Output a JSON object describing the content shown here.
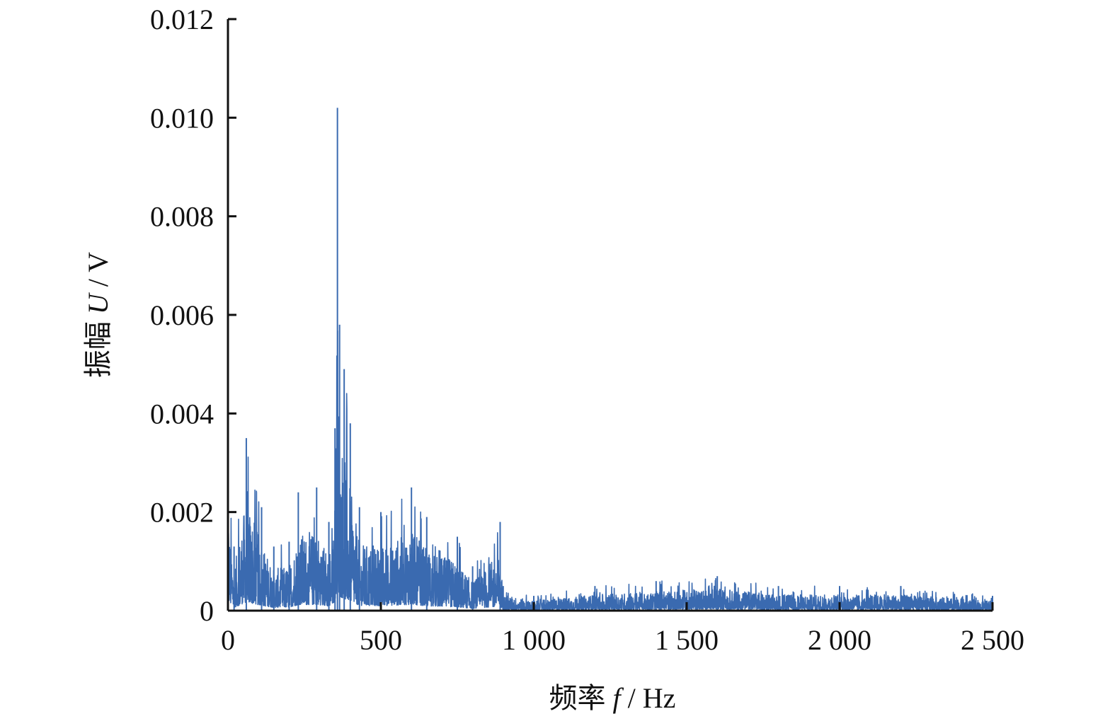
{
  "chart_data": {
    "type": "line",
    "title": "",
    "xlabel": {
      "prefix": "频率",
      "symbol": "f",
      "unit": "/ Hz"
    },
    "ylabel": {
      "prefix": "振幅",
      "symbol": "U",
      "unit": "/ V"
    },
    "xlim": [
      0,
      2500
    ],
    "ylim": [
      0,
      0.012
    ],
    "x_ticks": [
      {
        "value": 0,
        "label": "0"
      },
      {
        "value": 500,
        "label": "500"
      },
      {
        "value": 1000,
        "label": "1 000"
      },
      {
        "value": 1500,
        "label": "1 500"
      },
      {
        "value": 2000,
        "label": "2 000"
      },
      {
        "value": 2500,
        "label": "2 500"
      }
    ],
    "y_ticks": [
      {
        "value": 0,
        "label": "0"
      },
      {
        "value": 0.002,
        "label": "0.002"
      },
      {
        "value": 0.004,
        "label": "0.004"
      },
      {
        "value": 0.006,
        "label": "0.006"
      },
      {
        "value": 0.008,
        "label": "0.008"
      },
      {
        "value": 0.01,
        "label": "0.010"
      },
      {
        "value": 0.012,
        "label": "0.012"
      }
    ],
    "grid": false,
    "legend": "none",
    "series_color": "#3a6ab0",
    "series": [
      {
        "envelope": [
          {
            "x": 0,
            "y": 0.0032
          },
          {
            "x": 20,
            "y": 0.0013
          },
          {
            "x": 60,
            "y": 0.0035
          },
          {
            "x": 110,
            "y": 0.0021
          },
          {
            "x": 150,
            "y": 0.0013
          },
          {
            "x": 200,
            "y": 0.0014
          },
          {
            "x": 230,
            "y": 0.0024
          },
          {
            "x": 290,
            "y": 0.0025
          },
          {
            "x": 330,
            "y": 0.0018
          },
          {
            "x": 350,
            "y": 0.0037
          },
          {
            "x": 358,
            "y": 0.0102
          },
          {
            "x": 365,
            "y": 0.0058
          },
          {
            "x": 380,
            "y": 0.0049
          },
          {
            "x": 400,
            "y": 0.0038
          },
          {
            "x": 430,
            "y": 0.0021
          },
          {
            "x": 500,
            "y": 0.002
          },
          {
            "x": 600,
            "y": 0.0025
          },
          {
            "x": 650,
            "y": 0.0019
          },
          {
            "x": 750,
            "y": 0.0015
          },
          {
            "x": 800,
            "y": 0.0009
          },
          {
            "x": 890,
            "y": 0.0018
          },
          {
            "x": 900,
            "y": 0.0005
          },
          {
            "x": 1000,
            "y": 0.0003
          },
          {
            "x": 1200,
            "y": 0.0005
          },
          {
            "x": 1400,
            "y": 0.0006
          },
          {
            "x": 1600,
            "y": 0.0007
          },
          {
            "x": 1800,
            "y": 0.0005
          },
          {
            "x": 2000,
            "y": 0.0005
          },
          {
            "x": 2200,
            "y": 0.0005
          },
          {
            "x": 2500,
            "y": 0.0003
          }
        ]
      }
    ]
  }
}
